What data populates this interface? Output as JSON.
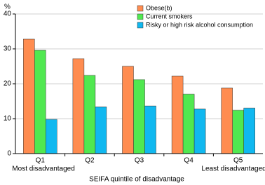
{
  "chart_data": {
    "type": "bar",
    "y_label": "%",
    "x_label": "SEIFA quintile of disadvantage",
    "categories": [
      "Q1",
      "Q2",
      "Q3",
      "Q4",
      "Q5"
    ],
    "category_sublabels": [
      "Most disadvantaged",
      null,
      null,
      null,
      "Least disadvantaged"
    ],
    "series": [
      {
        "name": "Obese(b)",
        "color": "#ff8c50",
        "values": [
          32.8,
          27.2,
          25.0,
          22.2,
          18.8
        ]
      },
      {
        "name": "Current smokers",
        "color": "#50e850",
        "values": [
          29.6,
          22.4,
          21.2,
          17.0,
          12.4
        ]
      },
      {
        "name": "Risky or high risk alcohol consumption",
        "color": "#10b8f0",
        "values": [
          9.8,
          13.4,
          13.6,
          12.8,
          13.0
        ]
      }
    ],
    "ylim": [
      0,
      40
    ],
    "yticks": [
      0,
      10,
      20,
      30,
      40
    ],
    "grid": true,
    "legend": "top-right"
  }
}
